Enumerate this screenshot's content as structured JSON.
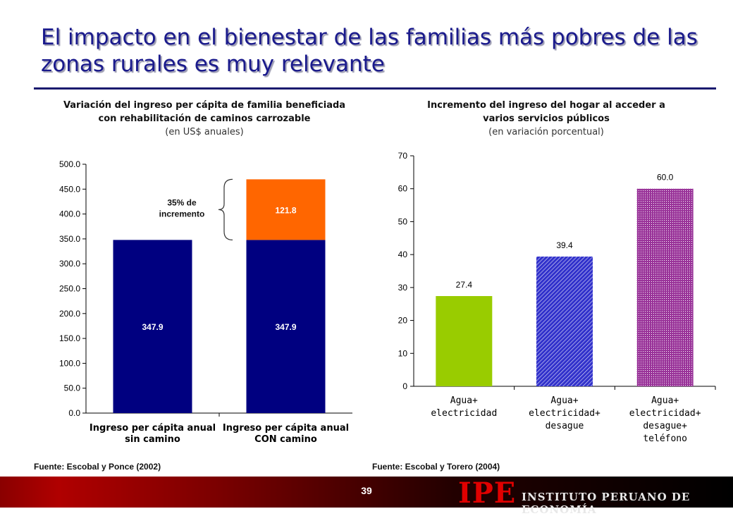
{
  "page": {
    "title": "El impacto en el bienestar de las familias más pobres de las zonas rurales es muy relevante",
    "page_number": "39",
    "logo_mark": "IPE",
    "logo_text": "INSTITUTO PERUANO DE ECONOMÍA",
    "footer_color": "#8a0000"
  },
  "left": {
    "title_line1": "Variación del ingreso per cápita de familia beneficiada",
    "title_line2": "con rehabilitación de caminos carrozable",
    "units": "(en US$ anuales)",
    "annotation_line1": "35% de",
    "annotation_line2": "incremento",
    "source": "Fuente: Escobal y Ponce (2002)"
  },
  "right": {
    "title_line1": "Incremento del ingreso del hogar al acceder a",
    "title_line2": "varios servicios públicos",
    "units": "(en variación porcentual)",
    "source": "Fuente: Escobal y Torero (2004)"
  },
  "chart_data": [
    {
      "type": "bar",
      "stacked": true,
      "categories": [
        [
          "Ingreso per cápita anual",
          "sin camino"
        ],
        [
          "Ingreso per cápita anual",
          "CON camino"
        ]
      ],
      "series": [
        {
          "values": [
            347.9,
            347.9
          ],
          "color": "#000080"
        },
        {
          "values": [
            0,
            121.8
          ],
          "color": "#ff6600"
        }
      ],
      "data_labels": [
        [
          "347.9",
          "347.9"
        ],
        [
          null,
          "121.8"
        ]
      ],
      "ylim": [
        0,
        500
      ],
      "yticks": [
        0,
        50,
        100,
        150,
        200,
        250,
        300,
        350,
        400,
        450,
        500
      ],
      "ytick_labels": [
        "0.0",
        "50.0",
        "100.0",
        "150.0",
        "200.0",
        "250.0",
        "300.0",
        "350.0",
        "400.0",
        "450.0",
        "500.0"
      ],
      "grid": false
    },
    {
      "type": "bar",
      "categories": [
        [
          "Agua+",
          "electricidad"
        ],
        [
          "Agua+",
          "electricidad+",
          "desague"
        ],
        [
          "Agua+",
          "electricidad+",
          "desague+",
          "teléfono"
        ]
      ],
      "values": [
        27.4,
        39.4,
        60.0
      ],
      "data_labels": [
        "27.4",
        "39.4",
        "60.0"
      ],
      "colors": [
        "#99cc00",
        "#3333cc",
        "#993399"
      ],
      "patterns": [
        "solid",
        "diagonal-hatch",
        "crosshatch"
      ],
      "ylim": [
        0,
        70
      ],
      "yticks": [
        0,
        10,
        20,
        30,
        40,
        50,
        60,
        70
      ],
      "ytick_labels": [
        "0",
        "10",
        "20",
        "30",
        "40",
        "50",
        "60",
        "70"
      ],
      "grid": false
    }
  ]
}
